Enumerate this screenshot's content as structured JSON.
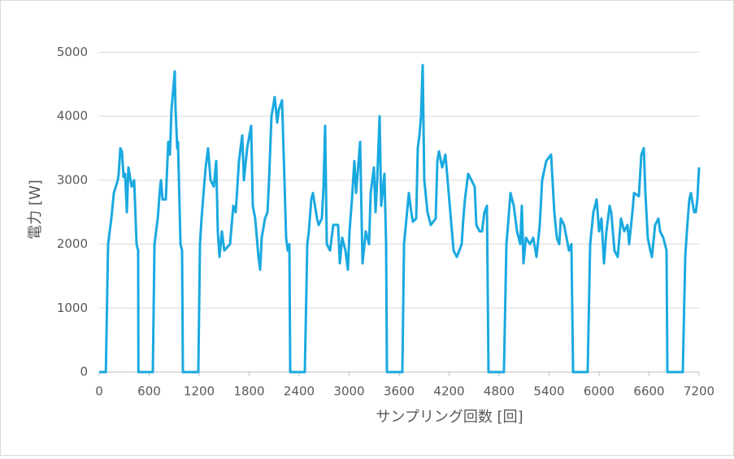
{
  "chart_data": {
    "type": "line",
    "xlabel": "サンプリング回数 [回]",
    "ylabel": "電力 [W]",
    "color": "#1aa9e0",
    "grid": true,
    "xlim": [
      0,
      7200
    ],
    "xticks": [
      0,
      600,
      1200,
      1800,
      2400,
      3000,
      3600,
      4200,
      4800,
      5400,
      6000,
      6600,
      7200
    ],
    "ylim": [
      0,
      5500
    ],
    "yticks": [
      0,
      1000,
      2000,
      3000,
      4000,
      5000
    ],
    "x": [
      0,
      80,
      107,
      146,
      176,
      224,
      234,
      254,
      273,
      293,
      312,
      332,
      351,
      390,
      420,
      449,
      468,
      471,
      644,
      664,
      703,
      732,
      742,
      761,
      800,
      829,
      849,
      868,
      907,
      917,
      937,
      946,
      976,
      995,
      1005,
      1190,
      1210,
      1229,
      1259,
      1278,
      1307,
      1337,
      1376,
      1405,
      1424,
      1444,
      1473,
      1502,
      1571,
      1610,
      1639,
      1678,
      1717,
      1737,
      1776,
      1824,
      1844,
      1873,
      1912,
      1932,
      1951,
      1990,
      2020,
      2039,
      2068,
      2107,
      2137,
      2156,
      2195,
      2224,
      2244,
      2263,
      2283,
      2293,
      2468,
      2498,
      2517,
      2546,
      2566,
      2615,
      2634,
      2673,
      2693,
      2712,
      2732,
      2771,
      2810,
      2868,
      2888,
      2917,
      2956,
      2985,
      3005,
      3034,
      3063,
      3083,
      3132,
      3161,
      3200,
      3239,
      3259,
      3298,
      3317,
      3337,
      3366,
      3385,
      3424,
      3444,
      3454,
      3639,
      3659,
      3688,
      3717,
      3746,
      3766,
      3805,
      3824,
      3844,
      3863,
      3883,
      3902,
      3941,
      3980,
      4039,
      4059,
      4078,
      4117,
      4156,
      4195,
      4234,
      4254,
      4293,
      4351,
      4371,
      4390,
      4429,
      4468,
      4507,
      4527,
      4566,
      4595,
      4624,
      4654,
      4673,
      4858,
      4888,
      4907,
      4937,
      4976,
      5015,
      5054,
      5073,
      5093,
      5122,
      5171,
      5210,
      5249,
      5288,
      5317,
      5366,
      5424,
      5463,
      5493,
      5522,
      5541,
      5580,
      5610,
      5639,
      5668,
      5688,
      5863,
      5893,
      5932,
      5971,
      6000,
      6029,
      6059,
      6088,
      6127,
      6146,
      6185,
      6224,
      6263,
      6302,
      6341,
      6361,
      6400,
      6420,
      6478,
      6507,
      6537,
      6556,
      6585,
      6615,
      6634,
      6673,
      6712,
      6732,
      6771,
      6810,
      6820,
      7005,
      7034,
      7054,
      7083,
      7102,
      7141,
      7161,
      7180,
      7200
    ],
    "values": [
      0,
      0,
      2000,
      2400,
      2800,
      3000,
      3100,
      3500,
      3450,
      3050,
      3100,
      2500,
      3200,
      2900,
      3000,
      2000,
      1900,
      0,
      0,
      2000,
      2400,
      2900,
      3000,
      2700,
      2700,
      3600,
      3400,
      4100,
      4700,
      4100,
      3500,
      3600,
      2000,
      1900,
      0,
      0,
      2000,
      2400,
      2900,
      3200,
      3500,
      3000,
      2900,
      3300,
      2200,
      1800,
      2200,
      1900,
      2000,
      2600,
      2500,
      3300,
      3700,
      3000,
      3500,
      3850,
      2600,
      2400,
      1800,
      1600,
      2100,
      2400,
      2500,
      3000,
      4000,
      4300,
      3900,
      4100,
      4250,
      3000,
      2100,
      1900,
      2000,
      0,
      0,
      2000,
      2200,
      2700,
      2800,
      2400,
      2300,
      2400,
      2900,
      3850,
      2000,
      1900,
      2300,
      2300,
      1700,
      2100,
      1900,
      1600,
      2200,
      2700,
      3300,
      2800,
      3600,
      1700,
      2200,
      2000,
      2800,
      3200,
      2500,
      3000,
      4000,
      2600,
      3100,
      2000,
      0,
      0,
      2000,
      2400,
      2800,
      2500,
      2350,
      2400,
      3500,
      3700,
      4000,
      4800,
      3000,
      2500,
      2300,
      2400,
      3300,
      3450,
      3200,
      3400,
      2800,
      2200,
      1900,
      1800,
      2000,
      2400,
      2700,
      3100,
      3000,
      2900,
      2300,
      2200,
      2200,
      2500,
      2600,
      0,
      0,
      2000,
      2300,
      2800,
      2600,
      2200,
      2000,
      2600,
      1700,
      2100,
      2000,
      2100,
      1800,
      2300,
      3000,
      3300,
      3400,
      2500,
      2100,
      2000,
      2400,
      2300,
      2100,
      1900,
      2000,
      0,
      0,
      2000,
      2500,
      2700,
      2200,
      2400,
      1700,
      2200,
      2600,
      2500,
      1900,
      1800,
      2400,
      2200,
      2300,
      2000,
      2500,
      2800,
      2750,
      3400,
      3500,
      2800,
      2100,
      1900,
      1800,
      2300,
      2400,
      2200,
      2100,
      1900,
      0,
      0,
      1800,
      2200,
      2700,
      2800,
      2500,
      2500,
      2700,
      3200
    ]
  }
}
